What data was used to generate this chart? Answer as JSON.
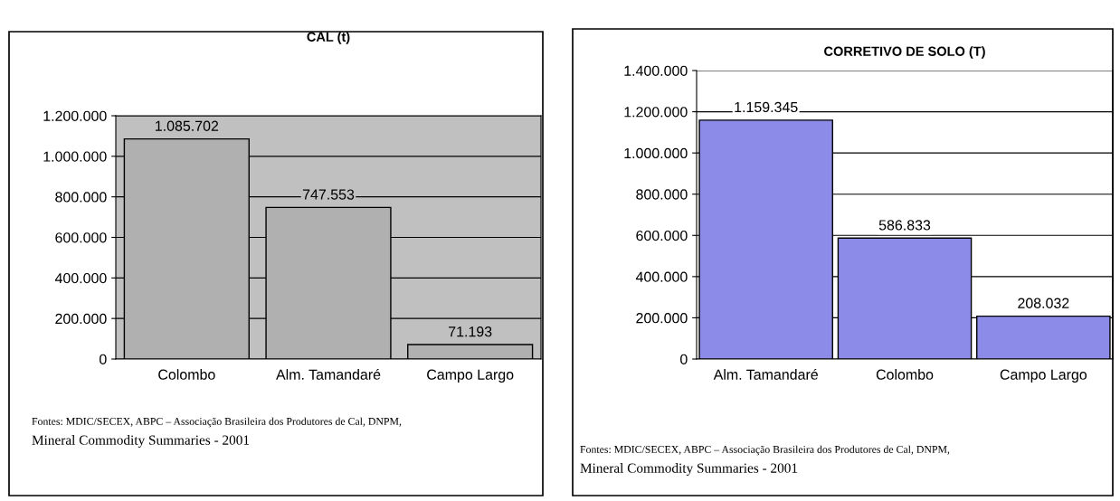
{
  "chart_data": [
    {
      "type": "bar",
      "title": "CAL (t)",
      "categories": [
        "Colombo",
        "Alm. Tamandaré",
        "Campo Largo"
      ],
      "values": [
        1085702,
        747553,
        71193
      ],
      "value_labels": [
        "1.085.702",
        "747.553",
        "71.193"
      ],
      "color": "#b0b0b0",
      "ylim": [
        0,
        1200000
      ],
      "yticks": [
        0,
        {
          "value": 200000,
          "label": "200.000"
        },
        {
          "value": 400000,
          "label": "400.000"
        },
        {
          "value": 600000,
          "label": "600.000"
        },
        {
          "value": 800000,
          "label": "800.000"
        },
        {
          "value": 1000000,
          "label": "1.000.000"
        },
        {
          "value": 1200000,
          "label": "1.200.000"
        }
      ],
      "grid": "y",
      "annotations": [
        "Fontes: MDIC/SECEX, ABPC – Associação Brasileira dos Produtores de Cal, DNPM,",
        "Mineral Commodity Summaries - 2001"
      ]
    },
    {
      "type": "bar",
      "title": "CORRETIVO DE SOLO (T)",
      "categories": [
        "Alm. Tamandaré",
        "Colombo",
        "Campo Largo"
      ],
      "values": [
        1159345,
        586833,
        208032
      ],
      "value_labels": [
        "1.159.345",
        "586.833",
        "208.032"
      ],
      "color": "#8c8ce8",
      "ylim": [
        0,
        1400000
      ],
      "yticks": [
        0,
        {
          "value": 200000,
          "label": "200.000"
        },
        {
          "value": 400000,
          "label": "400.000"
        },
        {
          "value": 600000,
          "label": "600.000"
        },
        {
          "value": 800000,
          "label": "800.000"
        },
        {
          "value": 1000000,
          "label": "1.000.000"
        },
        {
          "value": 1200000,
          "label": "1.200.000"
        },
        {
          "value": 1400000,
          "label": "1.400.000"
        }
      ],
      "grid": "y",
      "annotations": [
        "Fontes: MDIC/SECEX, ABPC – Associação Brasileira dos Produtores de Cal, DNPM,",
        "Mineral Commodity Summaries - 2001"
      ]
    }
  ]
}
